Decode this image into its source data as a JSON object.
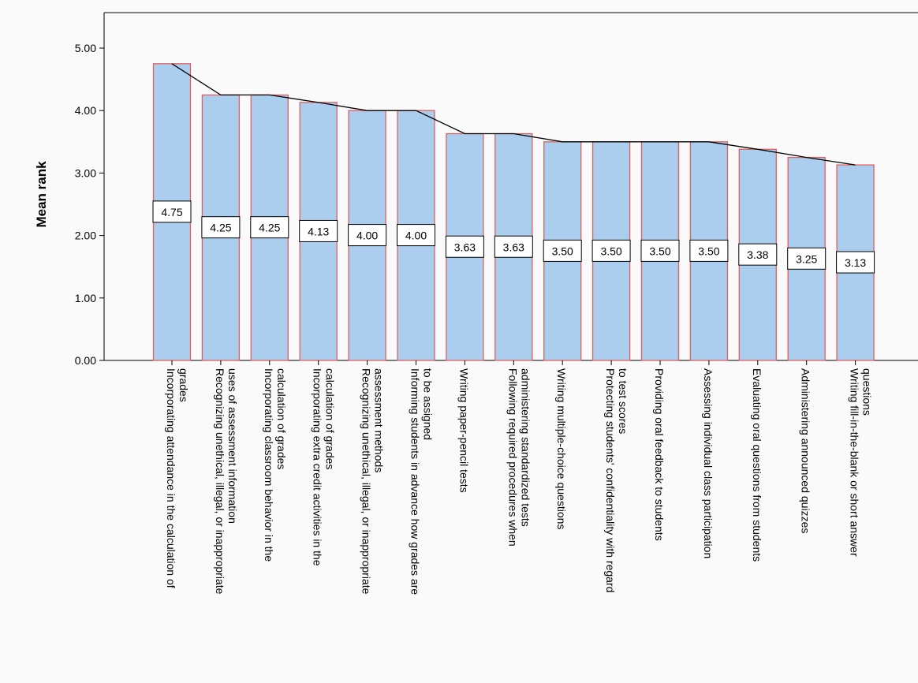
{
  "chart_data": {
    "type": "bar",
    "ylabel": "Mean rank",
    "ylim": [
      0,
      5
    ],
    "yticks": [
      "0.00",
      "1.00",
      "2.00",
      "3.00",
      "4.00",
      "5.00"
    ],
    "ytick_values": [
      0,
      1,
      2,
      3,
      4,
      5
    ],
    "grid": false,
    "overlay": "line",
    "categories": [
      [
        "Incorporating attendance in the calculation of",
        "grades"
      ],
      [
        "Recognizing unethical, illegal, or inappropriate",
        "uses of assessment information"
      ],
      [
        "Incorporating classroom behavior in the",
        "calculation of grades"
      ],
      [
        "Incorporating extra credit activities in the",
        "calculation of grades"
      ],
      [
        "Recognizing unethical, illegal, or inappropriate",
        "assessment methods"
      ],
      [
        "Informing students in advance how grades are",
        "to be assigned"
      ],
      [
        "Writing paper-pencil tests"
      ],
      [
        "Following required procedures when",
        "administering standardized tests"
      ],
      [
        "Writing multiple-choice questions"
      ],
      [
        "Protecting students' confidentiality with regard",
        "to test scores"
      ],
      [
        "Providing oral feedback to students"
      ],
      [
        "Assessing individual class participation"
      ],
      [
        "Evaluating oral questions from students"
      ],
      [
        "Administering announced quizzes"
      ],
      [
        "Writing fill-in-the-blank or short answer",
        "questions"
      ]
    ],
    "values": [
      4.75,
      4.25,
      4.25,
      4.13,
      4.0,
      4.0,
      3.63,
      3.63,
      3.5,
      3.5,
      3.5,
      3.5,
      3.38,
      3.25,
      3.13
    ],
    "data_labels": [
      "4.75",
      "4.25",
      "4.25",
      "4.13",
      "4.00",
      "4.00",
      "3.63",
      "3.63",
      "3.50",
      "3.50",
      "3.50",
      "3.50",
      "3.38",
      "3.25",
      "3.13"
    ],
    "colors": {
      "bar_fill": "#abcdee",
      "bar_stroke": "#e06060",
      "line": "#000000",
      "axis": "#000000"
    }
  }
}
